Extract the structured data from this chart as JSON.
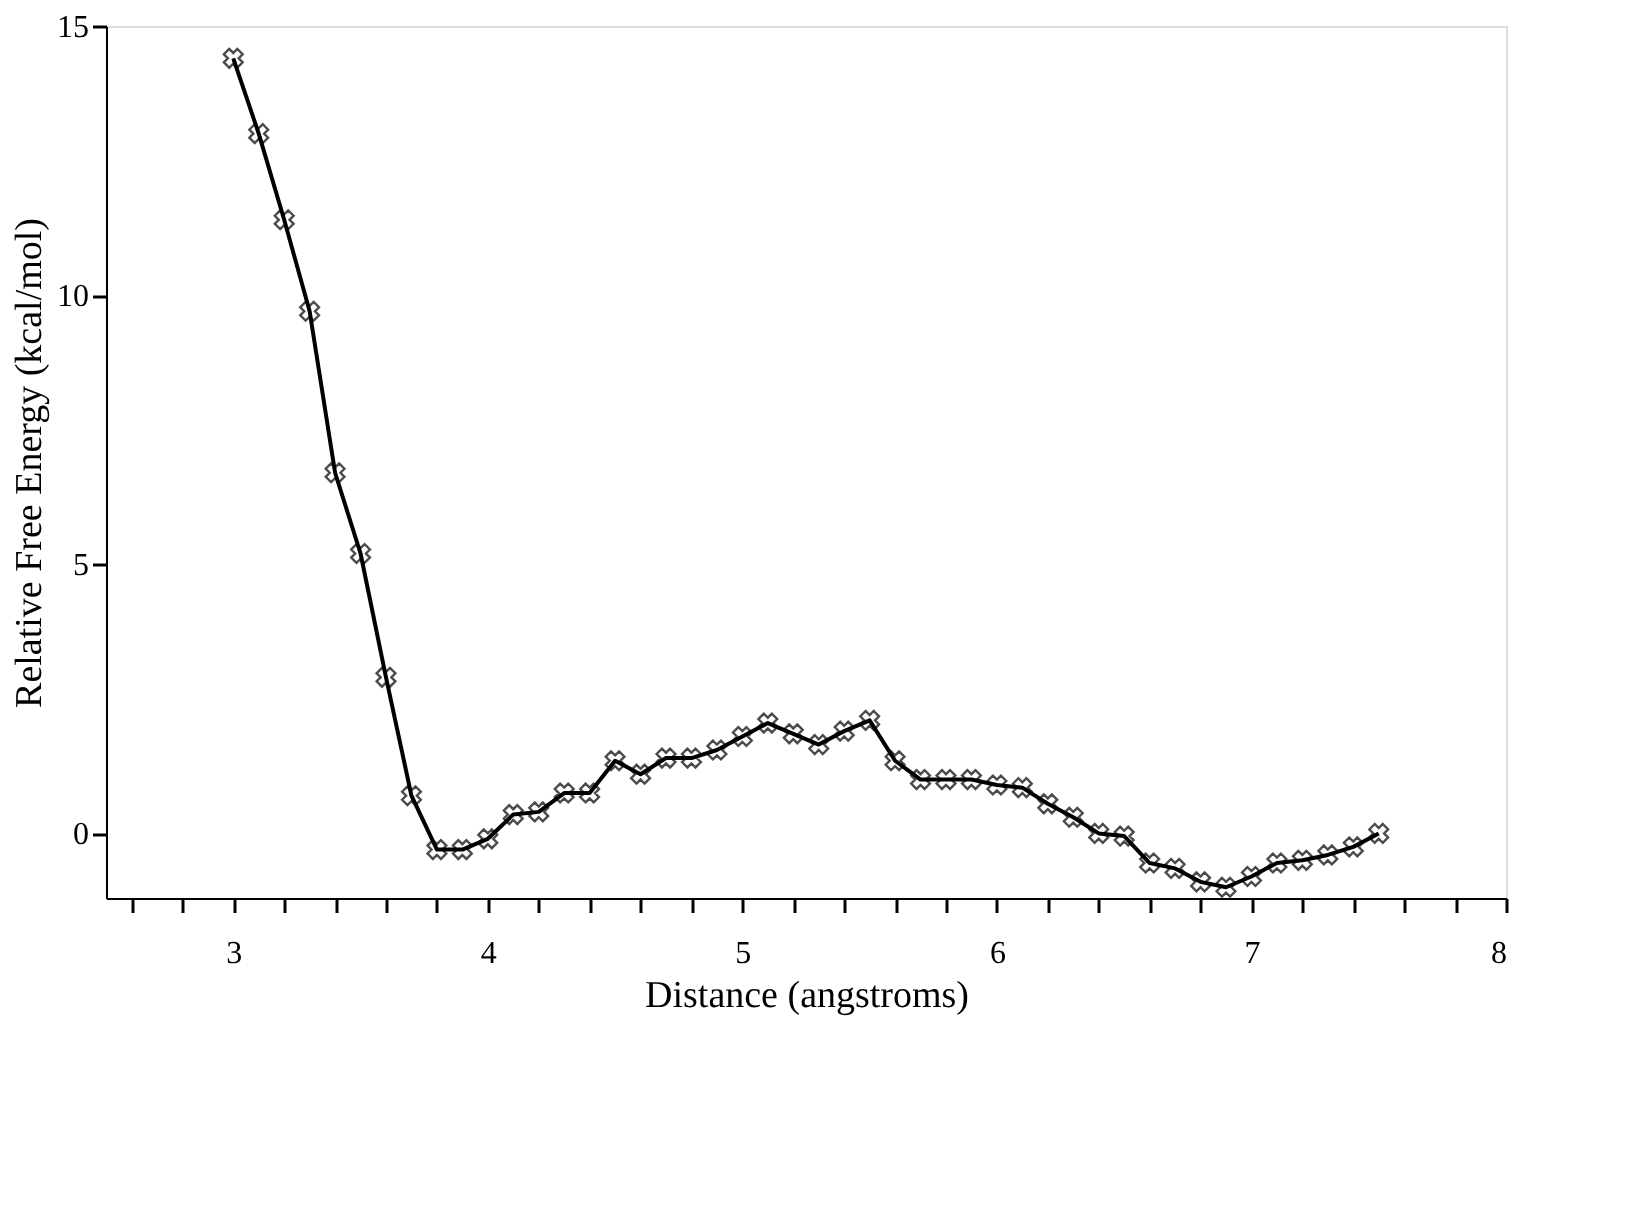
{
  "chart_data": {
    "type": "line",
    "xlabel": "Distance (angstroms)",
    "ylabel": "Relative Free Energy (kcal/mol)",
    "x": [
      3.0,
      3.1,
      3.2,
      3.3,
      3.4,
      3.5,
      3.6,
      3.7,
      3.8,
      3.9,
      4.0,
      4.1,
      4.2,
      4.3,
      4.4,
      4.5,
      4.6,
      4.7,
      4.8,
      4.9,
      5.0,
      5.1,
      5.2,
      5.3,
      5.4,
      5.5,
      5.6,
      5.7,
      5.8,
      5.9,
      6.0,
      6.1,
      6.2,
      6.3,
      6.4,
      6.5,
      6.6,
      6.7,
      6.8,
      6.9,
      7.0,
      7.1,
      7.2,
      7.3,
      7.4,
      7.5
    ],
    "series": [
      {
        "color": "#000000",
        "values": [
          14.4,
          13.0,
          11.4,
          9.7,
          6.7,
          5.2,
          2.9,
          0.7,
          -0.3,
          -0.3,
          -0.1,
          0.35,
          0.4,
          0.75,
          0.75,
          1.35,
          1.1,
          1.4,
          1.4,
          1.55,
          1.8,
          2.05,
          1.85,
          1.65,
          1.9,
          2.1,
          1.35,
          1.0,
          1.0,
          1.0,
          0.9,
          0.85,
          0.55,
          0.3,
          0.0,
          -0.05,
          -0.55,
          -0.65,
          -0.9,
          -1.0,
          -0.8,
          -0.55,
          -0.5,
          -0.4,
          -0.25,
          0.0
        ]
      }
    ],
    "xlim": [
      2.5,
      8
    ],
    "ylim": [
      -1.2,
      15
    ],
    "xticks": [
      {
        "value": 2.6,
        "label": null
      },
      {
        "value": 2.8,
        "label": null
      },
      3,
      {
        "value": 3.2,
        "label": null
      },
      {
        "value": 3.4,
        "label": null
      },
      {
        "value": 3.6,
        "label": null
      },
      {
        "value": 3.8,
        "label": null
      },
      4,
      {
        "value": 4.2,
        "label": null
      },
      {
        "value": 4.4,
        "label": null
      },
      {
        "value": 4.6,
        "label": null
      },
      {
        "value": 4.8,
        "label": null
      },
      5,
      {
        "value": 5.2,
        "label": null
      },
      {
        "value": 5.4,
        "label": null
      },
      {
        "value": 5.6,
        "label": null
      },
      {
        "value": 5.8,
        "label": null
      },
      6,
      {
        "value": 6.2,
        "label": null
      },
      {
        "value": 6.4,
        "label": null
      },
      {
        "value": 6.6,
        "label": null
      },
      {
        "value": 6.8,
        "label": null
      },
      7,
      {
        "value": 7.2,
        "label": null
      },
      {
        "value": 7.4,
        "label": null
      },
      {
        "value": 7.6,
        "label": null
      },
      {
        "value": 7.8,
        "label": null
      },
      8
    ],
    "yticks": [
      0,
      5,
      10,
      15
    ],
    "grid": false,
    "marker": "cross",
    "line_style": "solid"
  }
}
